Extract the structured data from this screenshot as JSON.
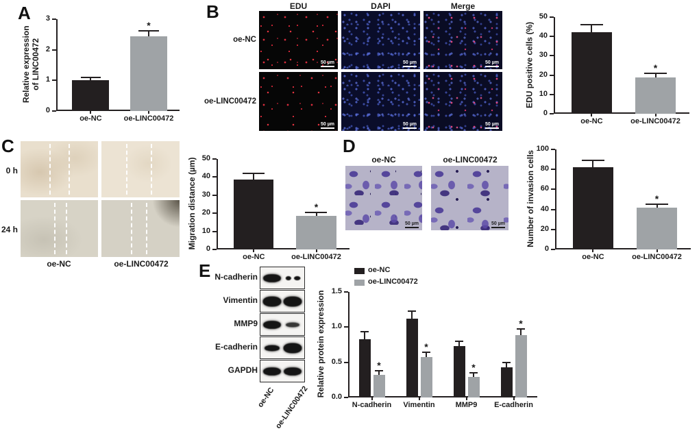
{
  "panels": {
    "A": {
      "label": "A"
    },
    "B": {
      "label": "B",
      "col_headers": [
        "EDU",
        "DAPI",
        "Merge"
      ],
      "row_labels": [
        "oe-NC",
        "oe-LINC00472"
      ],
      "scale_bar": "50 µm"
    },
    "C": {
      "label": "C",
      "row_labels": [
        "0 h",
        "24 h"
      ],
      "col_labels": [
        "oe-NC",
        "oe-LINC00472"
      ]
    },
    "D": {
      "label": "D",
      "col_labels": [
        "oe-NC",
        "oe-LINC00472"
      ],
      "scale_bar": "50 µm"
    },
    "E": {
      "label": "E",
      "blots": [
        {
          "label": "N-cadherin",
          "bands": [
            "strong",
            "split"
          ]
        },
        {
          "label": "Vimentin",
          "bands": [
            "xstrong",
            "xstrong"
          ]
        },
        {
          "label": "MMP9",
          "bands": [
            "strong",
            "weak"
          ]
        },
        {
          "label": "E-cadherin",
          "bands": [
            "medium",
            "xstrong"
          ]
        },
        {
          "label": "GAPDH",
          "bands": [
            "strong",
            "strong"
          ]
        }
      ],
      "lane_labels": [
        "oe-NC",
        "oe-LINC00472"
      ]
    }
  },
  "colors": {
    "bar_black": "#231f20",
    "bar_gray": "#9fa3a6",
    "axis": "#231f20",
    "edu_red": "#d92c3c",
    "dapi_blue": "#4a5bbf",
    "merge_pink": "#e94882",
    "invasion_purple": "#5a4a9a"
  },
  "chart_data": [
    {
      "id": "chartA",
      "type": "bar",
      "ylabel": "Relative expression\nof LINC00472",
      "categories": [
        "oe-NC",
        "oe-LINC00472"
      ],
      "values": [
        1.0,
        2.45
      ],
      "errors": [
        0.12,
        0.2
      ],
      "sig": [
        "",
        "*"
      ],
      "colors": [
        "#231f20",
        "#9fa3a6"
      ],
      "ylim": [
        0,
        3
      ],
      "yticks": [
        0,
        1,
        2,
        3
      ],
      "decimals": 0,
      "grid": false,
      "legend": false
    },
    {
      "id": "chartB",
      "type": "bar",
      "ylabel": "EDU positive cells (%)",
      "categories": [
        "oe-NC",
        "oe-LINC00472"
      ],
      "values": [
        42.3,
        18.7
      ],
      "errors": [
        4.2,
        2.7
      ],
      "sig": [
        "",
        "*"
      ],
      "colors": [
        "#231f20",
        "#9fa3a6"
      ],
      "ylim": [
        0,
        50
      ],
      "yticks": [
        0,
        10,
        20,
        30,
        40,
        50
      ],
      "decimals": 0,
      "grid": false,
      "legend": false
    },
    {
      "id": "chartC",
      "type": "bar",
      "ylabel": "Migration distance (µm)",
      "categories": [
        "oe-NC",
        "oe-LINC00472"
      ],
      "values": [
        38.6,
        18.6
      ],
      "errors": [
        3.8,
        2.3
      ],
      "sig": [
        "",
        "*"
      ],
      "colors": [
        "#231f20",
        "#9fa3a6"
      ],
      "ylim": [
        0,
        50
      ],
      "yticks": [
        0,
        10,
        20,
        30,
        40,
        50
      ],
      "decimals": 0,
      "grid": false,
      "legend": false
    },
    {
      "id": "chartD",
      "type": "bar",
      "ylabel": "Number of invasion cells",
      "categories": [
        "oe-NC",
        "oe-LINC00472"
      ],
      "values": [
        82,
        41.5
      ],
      "errors": [
        8,
        4.5
      ],
      "sig": [
        "",
        "*"
      ],
      "colors": [
        "#231f20",
        "#9fa3a6"
      ],
      "ylim": [
        0,
        100
      ],
      "yticks": [
        0,
        20,
        40,
        60,
        80,
        100
      ],
      "decimals": 0,
      "grid": false,
      "legend": false
    },
    {
      "id": "chartE",
      "type": "grouped_bar",
      "ylabel": "Relative protein expression",
      "categories": [
        "N-cadherin",
        "Vimentin",
        "MMP9",
        "E-cadherin"
      ],
      "series": [
        {
          "name": "oe-NC",
          "color": "#231f20",
          "values": [
            0.83,
            1.12,
            0.73,
            0.43
          ],
          "errors": [
            0.11,
            0.12,
            0.08,
            0.08
          ],
          "sig": [
            "",
            "",
            "",
            ""
          ]
        },
        {
          "name": "oe-LINC00472",
          "color": "#9fa3a6",
          "values": [
            0.32,
            0.57,
            0.29,
            0.89
          ],
          "errors": [
            0.07,
            0.08,
            0.07,
            0.09
          ],
          "sig": [
            "*",
            "*",
            "*",
            "*"
          ]
        }
      ],
      "ylim": [
        0,
        1.5
      ],
      "yticks": [
        0,
        0.5,
        1,
        1.5
      ],
      "decimals": 1,
      "grid": false,
      "legend": true,
      "legend_position": "top-left"
    }
  ]
}
